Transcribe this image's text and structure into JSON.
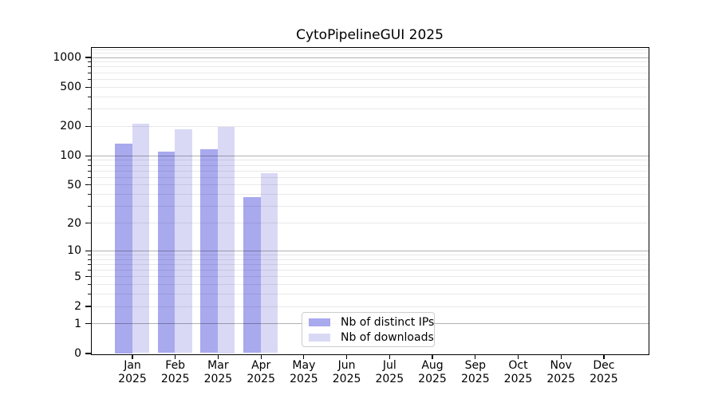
{
  "chart_data": {
    "type": "bar",
    "title": "CytoPipelineGUI 2025",
    "categories": [
      "Jan",
      "Feb",
      "Mar",
      "Apr",
      "May",
      "Jun",
      "Jul",
      "Aug",
      "Sep",
      "Oct",
      "Nov",
      "Dec"
    ],
    "year_label": "2025",
    "series": [
      {
        "name": "Nb of distinct IPs",
        "color": "#a9a9ee",
        "values": [
          133,
          110,
          115,
          37,
          0,
          0,
          0,
          0,
          0,
          0,
          0,
          0
        ]
      },
      {
        "name": "Nb of downloads",
        "color": "#d9d9f6",
        "values": [
          212,
          184,
          195,
          66,
          0,
          0,
          0,
          0,
          0,
          0,
          0,
          0
        ]
      }
    ],
    "yscale": "log1p",
    "yticks": [
      0,
      1,
      2,
      5,
      10,
      20,
      50,
      100,
      200,
      500,
      1000
    ],
    "major_grid_values": [
      1,
      10,
      100,
      1000
    ],
    "ylim": [
      0,
      1250
    ],
    "grid": "both",
    "legend_position": "lower center",
    "colors": {
      "major_grid": "#bdbdbd",
      "minor_grid": "#ebebeb",
      "axis": "#000000",
      "background": "#ffffff"
    }
  }
}
